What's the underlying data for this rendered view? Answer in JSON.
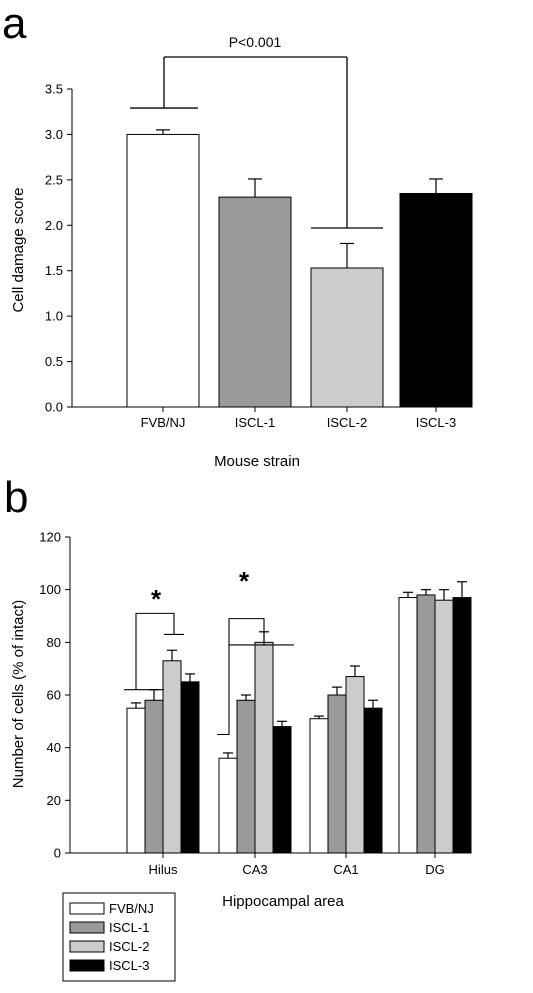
{
  "panel_a": {
    "letter": "a",
    "annotation": "P<0.001"
  },
  "panel_b": {
    "letter": "b",
    "annotation": "*"
  },
  "legend": [
    "FVB/NJ",
    "ISCL-1",
    "ISCL-2",
    "ISCL-3"
  ],
  "colors": {
    "FVB/NJ": "#ffffff",
    "ISCL-1": "#9a9a9a",
    "ISCL-2": "#cccccc",
    "ISCL-3": "#000000"
  },
  "chart_data": [
    {
      "type": "bar",
      "title": "",
      "xlabel": "Mouse strain",
      "ylabel": "Cell damage score",
      "ylim": [
        0,
        3.5
      ],
      "yticks": [
        "0.0",
        "0.5",
        "1.0",
        "1.5",
        "2.0",
        "2.5",
        "3.0",
        "3.5"
      ],
      "categories": [
        "FVB/NJ",
        "ISCL-1",
        "ISCL-2",
        "ISCL-3"
      ],
      "values": [
        3.0,
        2.31,
        1.53,
        2.35
      ],
      "errors": [
        0.05,
        0.2,
        0.27,
        0.16
      ],
      "colors": [
        "#ffffff",
        "#9a9a9a",
        "#cccccc",
        "#000000"
      ],
      "annotations": [
        "P<0.001"
      ],
      "grid": false,
      "legend": false
    },
    {
      "type": "bar",
      "title": "",
      "xlabel": "Hippocampal area",
      "ylabel": "Number of cells (% of intact)",
      "ylim": [
        0,
        120
      ],
      "yticks": [
        "0",
        "20",
        "40",
        "60",
        "80",
        "100",
        "120"
      ],
      "categories": [
        "Hilus",
        "CA3",
        "CA1",
        "DG"
      ],
      "series": [
        {
          "name": "FVB/NJ",
          "values": [
            55,
            36,
            51,
            97
          ],
          "errors": [
            2,
            2,
            1,
            2
          ]
        },
        {
          "name": "ISCL-1",
          "values": [
            58,
            58,
            60,
            98
          ],
          "errors": [
            4,
            2,
            3,
            2
          ]
        },
        {
          "name": "ISCL-2",
          "values": [
            73,
            80,
            67,
            96
          ],
          "errors": [
            4,
            4,
            4,
            4
          ]
        },
        {
          "name": "ISCL-3",
          "values": [
            65,
            48,
            55,
            97
          ],
          "errors": [
            3,
            2,
            3,
            6
          ]
        }
      ],
      "annotations": [
        "*",
        "*"
      ],
      "grid": false,
      "legend": "bottom-left"
    }
  ]
}
